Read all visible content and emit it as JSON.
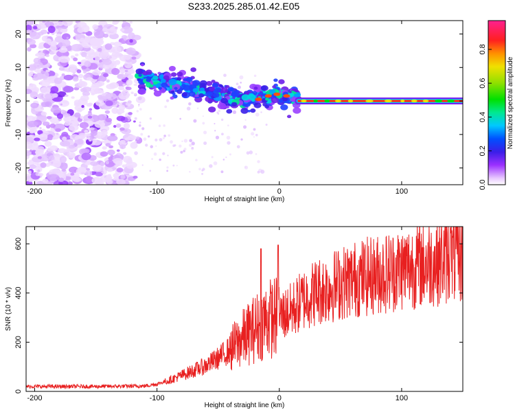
{
  "title": "S233.2025.285.01.42.E05",
  "chart_data": [
    {
      "type": "heatmap",
      "xlabel": "Height of straight line (km)",
      "ylabel": "Frequency (Hz)",
      "xlim": [
        -207,
        150
      ],
      "ylim": [
        -25,
        24
      ],
      "xticks": [
        -200,
        -100,
        0,
        100
      ],
      "yticks": [
        -20,
        -10,
        0,
        10,
        20
      ],
      "colorbar": {
        "label": "Normalized spectral amplitude",
        "range": [
          0,
          0.97
        ],
        "ticks": [
          0.0,
          0.2,
          0.4,
          0.6,
          0.8
        ],
        "tick_labels": [
          "0.0",
          "0.2",
          "0.4",
          "0.6",
          "0.8"
        ]
      },
      "features": {
        "noise_region_x": [
          -207,
          -120
        ],
        "noisy_wisp_ridge": [
          [
            -115,
            7
          ],
          [
            -100,
            5.5
          ],
          [
            -80,
            4.5
          ],
          [
            -60,
            3
          ],
          [
            -45,
            1.5
          ],
          [
            -30,
            0
          ],
          [
            -15,
            1.5
          ],
          [
            -5,
            2
          ],
          [
            5,
            1.5
          ],
          [
            15,
            0.5
          ]
        ],
        "stable_carrier_frequency_hz": 0,
        "stable_carrier_x": [
          15,
          150
        ]
      }
    },
    {
      "type": "line",
      "xlabel": "Height of straight line (km)",
      "ylabel": "SNR (10 * v/v)",
      "xlim": [
        -207,
        150
      ],
      "ylim": [
        0,
        670
      ],
      "xticks": [
        -200,
        -100,
        0,
        100
      ],
      "yticks": [
        0,
        200,
        400,
        600
      ],
      "series": [
        {
          "name": "SNR",
          "color": "#e82020",
          "trend": [
            [
              -207,
              20
            ],
            [
              -150,
              20
            ],
            [
              -110,
              22
            ],
            [
              -100,
              30
            ],
            [
              -90,
              45
            ],
            [
              -80,
              65
            ],
            [
              -70,
              85
            ],
            [
              -60,
              105
            ],
            [
              -50,
              135
            ],
            [
              -40,
              170
            ],
            [
              -30,
              215
            ],
            [
              -20,
              255
            ],
            [
              -10,
              295
            ],
            [
              0,
              305
            ],
            [
              10,
              330
            ],
            [
              20,
              375
            ],
            [
              30,
              405
            ],
            [
              40,
              420
            ],
            [
              50,
              440
            ],
            [
              60,
              455
            ],
            [
              70,
              465
            ],
            [
              80,
              475
            ],
            [
              90,
              485
            ],
            [
              100,
              500
            ],
            [
              110,
              510
            ],
            [
              120,
              520
            ],
            [
              130,
              530
            ],
            [
              140,
              540
            ],
            [
              150,
              545
            ]
          ],
          "spikes": [
            [
              -15,
              580
            ],
            [
              -1,
              595
            ],
            [
              140,
              665
            ]
          ]
        }
      ]
    }
  ]
}
